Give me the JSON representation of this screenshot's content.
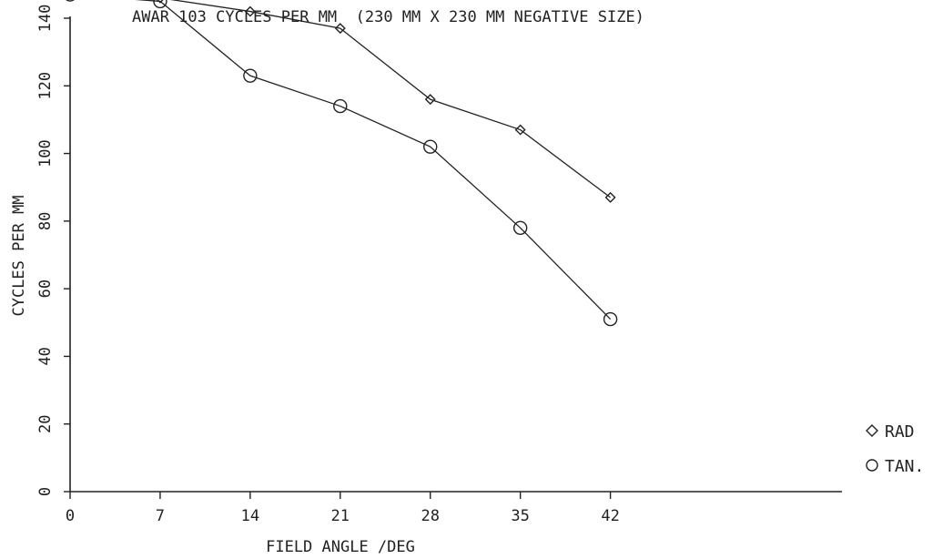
{
  "chart_data": {
    "type": "line",
    "title": "AWAR 103 CYCLES PER MM  (230 MM X 230 MM NEGATIVE SIZE)",
    "xlabel": "FIELD ANGLE /DEG",
    "ylabel": "CYCLES PER MM",
    "x": [
      0,
      7,
      14,
      21,
      28,
      35,
      42
    ],
    "xticks": [
      "0",
      "7",
      "14",
      "21",
      "28",
      "35",
      "42"
    ],
    "yticks": [
      "0",
      "20",
      "40",
      "60",
      "80",
      "100",
      "120",
      "140"
    ],
    "xlim": [
      0,
      60
    ],
    "ylim": [
      0,
      140
    ],
    "grid": false,
    "legend_position": "right",
    "series": [
      {
        "name": "RAD",
        "marker": "diamond",
        "values": [
          147,
          146,
          142,
          137,
          116,
          107,
          87
        ]
      },
      {
        "name": "TAN.",
        "marker": "circle",
        "values": [
          147,
          145,
          123,
          114,
          102,
          78,
          51
        ]
      }
    ]
  }
}
